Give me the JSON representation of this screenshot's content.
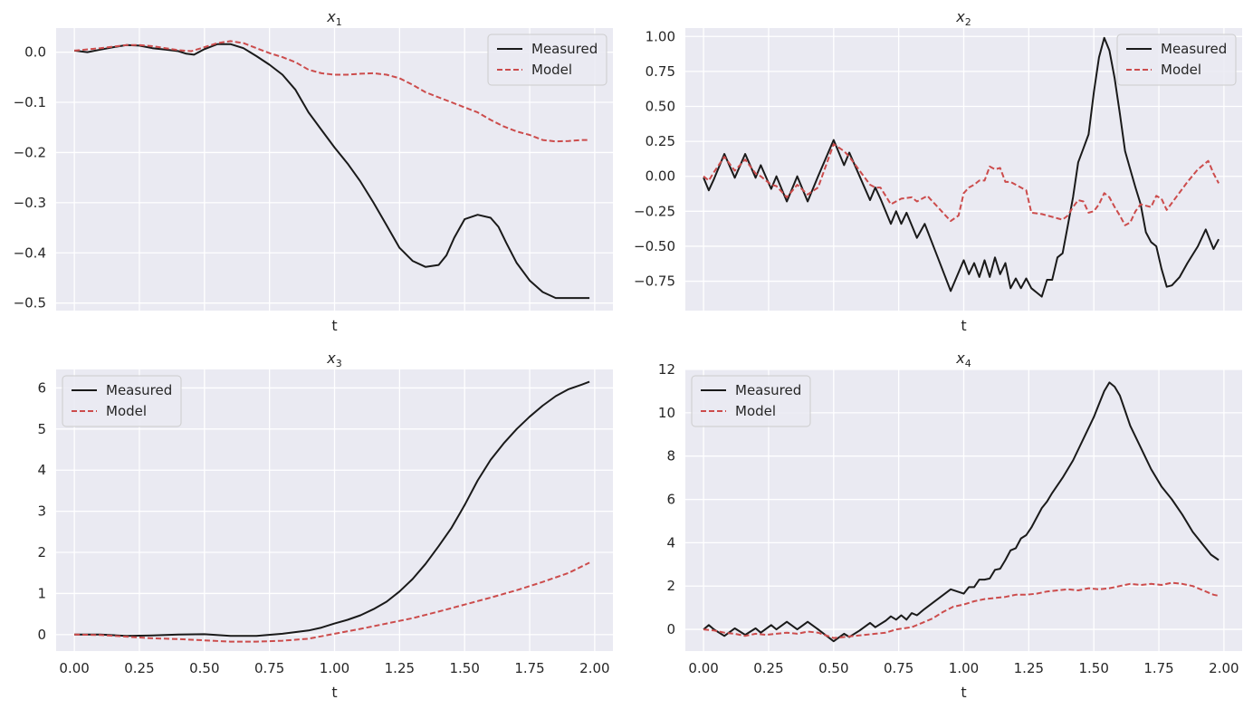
{
  "chart_data": [
    {
      "type": "line",
      "title": "x",
      "title_sub": "1",
      "xlabel": "t",
      "xlim": [
        -0.07,
        2.07
      ],
      "ylim": [
        -0.515,
        0.048
      ],
      "xticks": [
        0.0,
        0.25,
        0.5,
        0.75,
        1.0,
        1.25,
        1.5,
        1.75,
        2.0
      ],
      "xtick_labels": [
        "0.00",
        "0.25",
        "0.50",
        "0.75",
        "1.00",
        "1.25",
        "1.50",
        "1.75",
        "2.00"
      ],
      "show_xtick_labels": false,
      "yticks": [
        0.0,
        -0.1,
        -0.2,
        -0.3,
        -0.4,
        -0.5
      ],
      "ytick_labels": [
        "0.0",
        "−0.1",
        "−0.2",
        "−0.3",
        "−0.4",
        "−0.5"
      ],
      "legend": [
        "Measured",
        "Model"
      ],
      "legend_loc": "upper-right",
      "series": [
        {
          "name": "Measured",
          "color": "#1a1a1a",
          "dash": "",
          "x": [
            0,
            0.05,
            0.1,
            0.15,
            0.2,
            0.25,
            0.3,
            0.35,
            0.4,
            0.43,
            0.46,
            0.5,
            0.55,
            0.6,
            0.65,
            0.7,
            0.75,
            0.8,
            0.85,
            0.9,
            0.95,
            1.0,
            1.05,
            1.1,
            1.15,
            1.2,
            1.25,
            1.3,
            1.35,
            1.4,
            1.43,
            1.46,
            1.5,
            1.55,
            1.6,
            1.63,
            1.66,
            1.7,
            1.75,
            1.8,
            1.85,
            1.9,
            1.95,
            1.98
          ],
          "y": [
            0.003,
            0.0,
            0.005,
            0.01,
            0.014,
            0.013,
            0.008,
            0.005,
            0.002,
            -0.003,
            -0.005,
            0.006,
            0.016,
            0.016,
            0.008,
            -0.008,
            -0.025,
            -0.045,
            -0.075,
            -0.12,
            -0.155,
            -0.19,
            -0.222,
            -0.258,
            -0.3,
            -0.345,
            -0.39,
            -0.416,
            -0.428,
            -0.424,
            -0.405,
            -0.37,
            -0.333,
            -0.324,
            -0.33,
            -0.348,
            -0.38,
            -0.42,
            -0.455,
            -0.478,
            -0.49,
            -0.49,
            -0.49,
            -0.49
          ]
        },
        {
          "name": "Model",
          "color": "#cc4c4c",
          "dash": "6,3",
          "x": [
            0,
            0.1,
            0.2,
            0.25,
            0.3,
            0.35,
            0.4,
            0.45,
            0.5,
            0.55,
            0.6,
            0.65,
            0.7,
            0.75,
            0.8,
            0.85,
            0.9,
            0.95,
            1.0,
            1.05,
            1.1,
            1.15,
            1.2,
            1.25,
            1.3,
            1.35,
            1.4,
            1.45,
            1.5,
            1.55,
            1.6,
            1.65,
            1.7,
            1.75,
            1.8,
            1.85,
            1.9,
            1.95,
            1.98
          ],
          "y": [
            0.003,
            0.008,
            0.014,
            0.014,
            0.012,
            0.008,
            0.004,
            0.002,
            0.01,
            0.018,
            0.022,
            0.018,
            0.008,
            -0.002,
            -0.01,
            -0.02,
            -0.035,
            -0.042,
            -0.045,
            -0.045,
            -0.043,
            -0.042,
            -0.045,
            -0.052,
            -0.065,
            -0.08,
            -0.09,
            -0.1,
            -0.11,
            -0.12,
            -0.135,
            -0.148,
            -0.158,
            -0.165,
            -0.175,
            -0.178,
            -0.177,
            -0.175,
            -0.175
          ]
        }
      ]
    },
    {
      "type": "line",
      "title": "x",
      "title_sub": "2",
      "xlabel": "t",
      "xlim": [
        -0.07,
        2.07
      ],
      "ylim": [
        -0.96,
        1.06
      ],
      "xticks": [
        0.0,
        0.25,
        0.5,
        0.75,
        1.0,
        1.25,
        1.5,
        1.75,
        2.0
      ],
      "xtick_labels": [
        "0.00",
        "0.25",
        "0.50",
        "0.75",
        "1.00",
        "1.25",
        "1.50",
        "1.75",
        "2.00"
      ],
      "show_xtick_labels": false,
      "yticks": [
        1.0,
        0.75,
        0.5,
        0.25,
        0.0,
        -0.25,
        -0.5,
        -0.75
      ],
      "ytick_labels": [
        "1.00",
        "0.75",
        "0.50",
        "0.25",
        "0.00",
        "−0.25",
        "−0.50",
        "−0.75"
      ],
      "legend": [
        "Measured",
        "Model"
      ],
      "legend_loc": "upper-right",
      "series": [
        {
          "name": "Measured",
          "color": "#1a1a1a",
          "dash": "",
          "x": [
            0,
            0.02,
            0.04,
            0.08,
            0.12,
            0.16,
            0.2,
            0.22,
            0.26,
            0.28,
            0.32,
            0.36,
            0.4,
            0.44,
            0.5,
            0.54,
            0.56,
            0.6,
            0.64,
            0.66,
            0.68,
            0.72,
            0.74,
            0.76,
            0.78,
            0.82,
            0.85,
            0.9,
            0.95,
            1.0,
            1.02,
            1.04,
            1.06,
            1.08,
            1.1,
            1.12,
            1.14,
            1.16,
            1.18,
            1.2,
            1.22,
            1.24,
            1.26,
            1.3,
            1.32,
            1.34,
            1.36,
            1.38,
            1.4,
            1.42,
            1.44,
            1.46,
            1.48,
            1.5,
            1.52,
            1.54,
            1.56,
            1.58,
            1.6,
            1.62,
            1.64,
            1.66,
            1.68,
            1.7,
            1.72,
            1.74,
            1.76,
            1.78,
            1.8,
            1.83,
            1.86,
            1.9,
            1.93,
            1.96,
            1.98
          ],
          "y": [
            -0.01,
            -0.1,
            -0.02,
            0.16,
            -0.01,
            0.16,
            -0.01,
            0.08,
            -0.09,
            0.0,
            -0.18,
            0.0,
            -0.18,
            0.0,
            0.26,
            0.08,
            0.17,
            0.0,
            -0.17,
            -0.08,
            -0.16,
            -0.34,
            -0.25,
            -0.34,
            -0.26,
            -0.44,
            -0.34,
            -0.58,
            -0.82,
            -0.6,
            -0.7,
            -0.62,
            -0.72,
            -0.6,
            -0.72,
            -0.58,
            -0.7,
            -0.62,
            -0.8,
            -0.73,
            -0.8,
            -0.73,
            -0.8,
            -0.86,
            -0.74,
            -0.74,
            -0.58,
            -0.55,
            -0.35,
            -0.15,
            0.1,
            0.2,
            0.3,
            0.6,
            0.85,
            0.99,
            0.9,
            0.7,
            0.45,
            0.18,
            0.05,
            -0.08,
            -0.2,
            -0.4,
            -0.47,
            -0.5,
            -0.66,
            -0.79,
            -0.78,
            -0.72,
            -0.62,
            -0.5,
            -0.38,
            -0.52,
            -0.45
          ]
        },
        {
          "name": "Model",
          "color": "#cc4c4c",
          "dash": "6,3",
          "x": [
            0,
            0.02,
            0.04,
            0.08,
            0.12,
            0.16,
            0.2,
            0.22,
            0.26,
            0.28,
            0.32,
            0.36,
            0.4,
            0.44,
            0.5,
            0.54,
            0.56,
            0.6,
            0.64,
            0.66,
            0.68,
            0.72,
            0.76,
            0.8,
            0.82,
            0.86,
            0.9,
            0.92,
            0.95,
            0.98,
            1.0,
            1.02,
            1.04,
            1.06,
            1.08,
            1.1,
            1.12,
            1.14,
            1.16,
            1.18,
            1.2,
            1.22,
            1.24,
            1.26,
            1.3,
            1.34,
            1.36,
            1.38,
            1.4,
            1.42,
            1.44,
            1.46,
            1.48,
            1.5,
            1.52,
            1.54,
            1.56,
            1.58,
            1.6,
            1.62,
            1.64,
            1.66,
            1.68,
            1.7,
            1.72,
            1.74,
            1.76,
            1.78,
            1.82,
            1.86,
            1.9,
            1.94,
            1.96,
            1.98
          ],
          "y": [
            0.0,
            -0.03,
            0.03,
            0.14,
            0.04,
            0.12,
            0.02,
            0.0,
            -0.06,
            -0.07,
            -0.15,
            -0.06,
            -0.13,
            -0.08,
            0.23,
            0.18,
            0.14,
            0.04,
            -0.06,
            -0.08,
            -0.08,
            -0.2,
            -0.16,
            -0.15,
            -0.18,
            -0.14,
            -0.22,
            -0.26,
            -0.32,
            -0.28,
            -0.12,
            -0.08,
            -0.06,
            -0.03,
            -0.03,
            0.07,
            0.05,
            0.06,
            -0.04,
            -0.04,
            -0.06,
            -0.08,
            -0.1,
            -0.26,
            -0.27,
            -0.29,
            -0.3,
            -0.31,
            -0.28,
            -0.22,
            -0.17,
            -0.18,
            -0.26,
            -0.25,
            -0.2,
            -0.12,
            -0.15,
            -0.22,
            -0.28,
            -0.35,
            -0.33,
            -0.25,
            -0.2,
            -0.21,
            -0.22,
            -0.14,
            -0.16,
            -0.24,
            -0.14,
            -0.04,
            0.05,
            0.11,
            0.02,
            -0.05
          ]
        }
      ]
    },
    {
      "type": "line",
      "title": "x",
      "title_sub": "3",
      "xlabel": "t",
      "xlim": [
        -0.07,
        2.07
      ],
      "ylim": [
        -0.4,
        6.45
      ],
      "xticks": [
        0.0,
        0.25,
        0.5,
        0.75,
        1.0,
        1.25,
        1.5,
        1.75,
        2.0
      ],
      "xtick_labels": [
        "0.00",
        "0.25",
        "0.50",
        "0.75",
        "1.00",
        "1.25",
        "1.50",
        "1.75",
        "2.00"
      ],
      "show_xtick_labels": true,
      "yticks": [
        0,
        1,
        2,
        3,
        4,
        5,
        6
      ],
      "ytick_labels": [
        "0",
        "1",
        "2",
        "3",
        "4",
        "5",
        "6"
      ],
      "legend": [
        "Measured",
        "Model"
      ],
      "legend_loc": "upper-left",
      "series": [
        {
          "name": "Measured",
          "color": "#1a1a1a",
          "dash": "",
          "x": [
            0,
            0.1,
            0.2,
            0.3,
            0.4,
            0.5,
            0.6,
            0.7,
            0.8,
            0.9,
            0.95,
            1.0,
            1.05,
            1.1,
            1.15,
            1.2,
            1.25,
            1.3,
            1.35,
            1.4,
            1.45,
            1.5,
            1.55,
            1.6,
            1.65,
            1.7,
            1.75,
            1.8,
            1.85,
            1.9,
            1.95,
            1.98
          ],
          "y": [
            0.0,
            0.0,
            -0.03,
            -0.02,
            0.0,
            0.01,
            -0.03,
            -0.03,
            0.02,
            0.1,
            0.17,
            0.27,
            0.36,
            0.47,
            0.62,
            0.8,
            1.05,
            1.35,
            1.72,
            2.15,
            2.6,
            3.15,
            3.75,
            4.25,
            4.65,
            5.0,
            5.3,
            5.57,
            5.8,
            5.97,
            6.08,
            6.15
          ]
        },
        {
          "name": "Model",
          "color": "#cc4c4c",
          "dash": "6,3",
          "x": [
            0,
            0.1,
            0.2,
            0.3,
            0.4,
            0.5,
            0.6,
            0.7,
            0.8,
            0.9,
            1.0,
            1.1,
            1.2,
            1.3,
            1.4,
            1.5,
            1.6,
            1.7,
            1.8,
            1.9,
            1.98
          ],
          "y": [
            0.0,
            -0.01,
            -0.05,
            -0.09,
            -0.11,
            -0.14,
            -0.17,
            -0.17,
            -0.15,
            -0.1,
            0.02,
            0.14,
            0.27,
            0.4,
            0.56,
            0.73,
            0.9,
            1.08,
            1.28,
            1.5,
            1.75
          ]
        }
      ]
    },
    {
      "type": "line",
      "title": "x",
      "title_sub": "4",
      "xlabel": "t",
      "xlim": [
        -0.07,
        2.07
      ],
      "ylim": [
        -1.0,
        12.0
      ],
      "xticks": [
        0.0,
        0.25,
        0.5,
        0.75,
        1.0,
        1.25,
        1.5,
        1.75,
        2.0
      ],
      "xtick_labels": [
        "0.00",
        "0.25",
        "0.50",
        "0.75",
        "1.00",
        "1.25",
        "1.50",
        "1.75",
        "2.00"
      ],
      "show_xtick_labels": true,
      "yticks": [
        0,
        2,
        4,
        6,
        8,
        10,
        12
      ],
      "ytick_labels": [
        "0",
        "2",
        "4",
        "6",
        "8",
        "10",
        "12"
      ],
      "legend": [
        "Measured",
        "Model"
      ],
      "legend_loc": "upper-left",
      "series": [
        {
          "name": "Measured",
          "color": "#1a1a1a",
          "dash": "",
          "x": [
            0,
            0.02,
            0.04,
            0.08,
            0.12,
            0.16,
            0.2,
            0.22,
            0.26,
            0.28,
            0.32,
            0.36,
            0.4,
            0.44,
            0.5,
            0.54,
            0.56,
            0.6,
            0.64,
            0.66,
            0.7,
            0.72,
            0.74,
            0.76,
            0.78,
            0.8,
            0.82,
            0.85,
            0.9,
            0.95,
            1.0,
            1.02,
            1.04,
            1.06,
            1.08,
            1.1,
            1.12,
            1.14,
            1.16,
            1.18,
            1.2,
            1.22,
            1.24,
            1.26,
            1.3,
            1.32,
            1.34,
            1.38,
            1.42,
            1.46,
            1.5,
            1.52,
            1.54,
            1.56,
            1.58,
            1.6,
            1.62,
            1.64,
            1.68,
            1.72,
            1.76,
            1.8,
            1.84,
            1.88,
            1.92,
            1.95,
            1.98
          ],
          "y": [
            0.0,
            0.2,
            0.0,
            -0.3,
            0.05,
            -0.25,
            0.05,
            -0.15,
            0.2,
            0.0,
            0.35,
            0.0,
            0.35,
            0.0,
            -0.55,
            -0.2,
            -0.35,
            -0.05,
            0.3,
            0.1,
            0.4,
            0.6,
            0.45,
            0.65,
            0.45,
            0.75,
            0.65,
            0.95,
            1.4,
            1.85,
            1.65,
            1.95,
            1.95,
            2.3,
            2.3,
            2.35,
            2.75,
            2.8,
            3.2,
            3.65,
            3.75,
            4.2,
            4.35,
            4.7,
            5.6,
            5.9,
            6.3,
            7.0,
            7.8,
            8.8,
            9.8,
            10.4,
            11.0,
            11.4,
            11.2,
            10.8,
            10.1,
            9.4,
            8.4,
            7.4,
            6.6,
            6.0,
            5.3,
            4.5,
            3.9,
            3.45,
            3.2
          ]
        },
        {
          "name": "Model",
          "color": "#cc4c4c",
          "dash": "6,3",
          "x": [
            0,
            0.04,
            0.08,
            0.12,
            0.16,
            0.2,
            0.24,
            0.28,
            0.32,
            0.36,
            0.4,
            0.44,
            0.5,
            0.54,
            0.58,
            0.62,
            0.66,
            0.7,
            0.74,
            0.8,
            0.84,
            0.88,
            0.92,
            0.96,
            1.0,
            1.04,
            1.08,
            1.12,
            1.16,
            1.2,
            1.24,
            1.28,
            1.32,
            1.36,
            1.4,
            1.44,
            1.48,
            1.52,
            1.56,
            1.6,
            1.64,
            1.68,
            1.72,
            1.76,
            1.8,
            1.84,
            1.88,
            1.92,
            1.96,
            1.98
          ],
          "y": [
            0.0,
            -0.05,
            -0.15,
            -0.2,
            -0.3,
            -0.2,
            -0.25,
            -0.2,
            -0.15,
            -0.2,
            -0.1,
            -0.15,
            -0.4,
            -0.35,
            -0.3,
            -0.25,
            -0.2,
            -0.15,
            0.0,
            0.1,
            0.3,
            0.5,
            0.8,
            1.05,
            1.15,
            1.3,
            1.4,
            1.45,
            1.5,
            1.6,
            1.6,
            1.65,
            1.75,
            1.8,
            1.85,
            1.8,
            1.9,
            1.85,
            1.9,
            2.0,
            2.1,
            2.05,
            2.1,
            2.05,
            2.15,
            2.1,
            2.0,
            1.8,
            1.6,
            1.55
          ]
        }
      ]
    }
  ]
}
